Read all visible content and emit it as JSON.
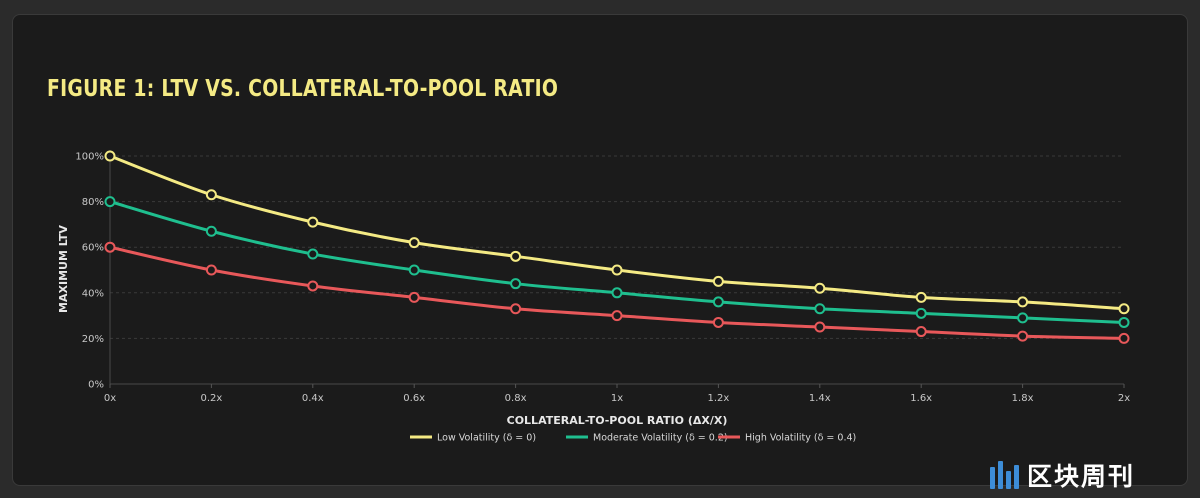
{
  "chart_data": {
    "type": "line",
    "title": "FIGURE 1: LTV VS. COLLATERAL-TO-POOL RATIO",
    "xlabel": "COLLATERAL-TO-POOL RATIO (ΔX/X)",
    "ylabel": "MAXIMUM LTV",
    "categories": [
      "0x",
      "0.2x",
      "0.4x",
      "0.6x",
      "0.8x",
      "1x",
      "1.2x",
      "1.4x",
      "1.6x",
      "1.8x",
      "2x"
    ],
    "y_ticks": [
      "0%",
      "20%",
      "40%",
      "60%",
      "80%",
      "100%"
    ],
    "ylim": [
      0,
      100
    ],
    "grid": true,
    "legend_position": "bottom",
    "series": [
      {
        "name": "Low Volatility (δ = 0)",
        "color": "#f4ea84",
        "values": [
          100,
          83,
          71,
          62,
          56,
          50,
          45,
          42,
          38,
          36,
          33
        ]
      },
      {
        "name": "Moderate Volatility (δ = 0.2)",
        "color": "#1fbf8f",
        "values": [
          80,
          67,
          57,
          50,
          44,
          40,
          36,
          33,
          31,
          29,
          27
        ]
      },
      {
        "name": "High Volatility (δ = 0.4)",
        "color": "#e8585a",
        "values": [
          60,
          50,
          43,
          38,
          33,
          30,
          27,
          25,
          23,
          21,
          20
        ]
      }
    ]
  },
  "watermark": {
    "text": "区块周刊",
    "icon": "bar-logo-icon"
  }
}
